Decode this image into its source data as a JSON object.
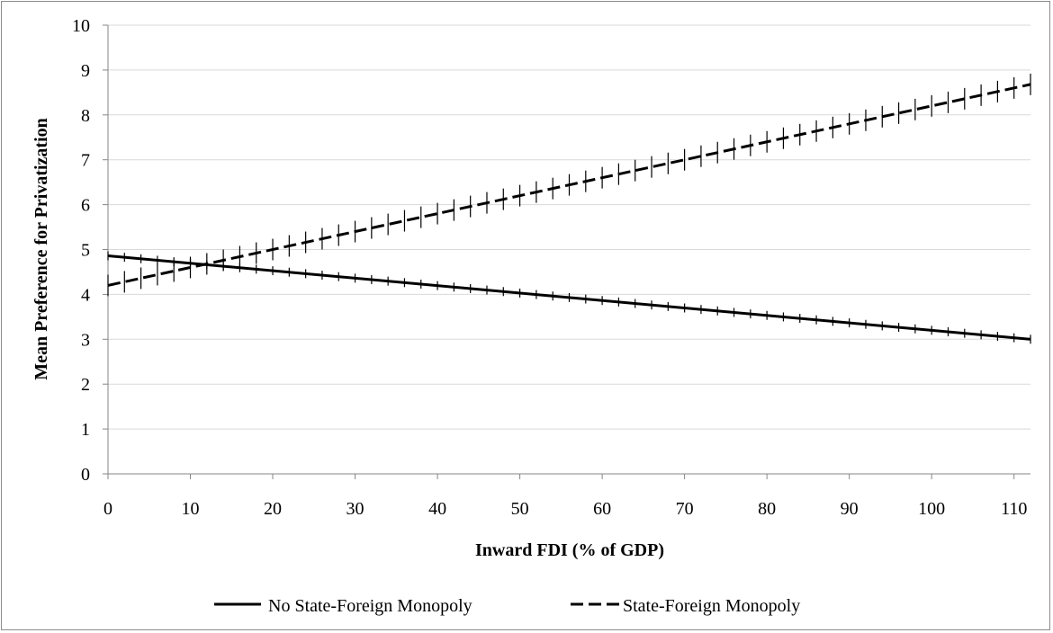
{
  "chart_data": {
    "type": "line",
    "title": "",
    "xlabel": "Inward FDI (% of GDP)",
    "ylabel": "Mean Preference for Privatization",
    "xlim": [
      0,
      112
    ],
    "ylim": [
      0,
      10
    ],
    "xticks": [
      0,
      10,
      20,
      30,
      40,
      50,
      60,
      70,
      80,
      90,
      100,
      110
    ],
    "yticks": [
      0,
      1,
      2,
      3,
      4,
      5,
      6,
      7,
      8,
      9,
      10
    ],
    "grid": "horizontal",
    "legend": "bottom",
    "series": [
      {
        "name": "No State-Foreign Monopoly",
        "style": "solid",
        "color": "#000000",
        "x": [
          0,
          112
        ],
        "y": [
          4.86,
          3.0
        ],
        "ci_halfwidth": 0.1
      },
      {
        "name": "State-Foreign Monopoly",
        "style": "dashed",
        "color": "#000000",
        "x": [
          0,
          112
        ],
        "y": [
          4.2,
          8.68
        ],
        "ci_halfwidth": 0.24
      }
    ]
  }
}
